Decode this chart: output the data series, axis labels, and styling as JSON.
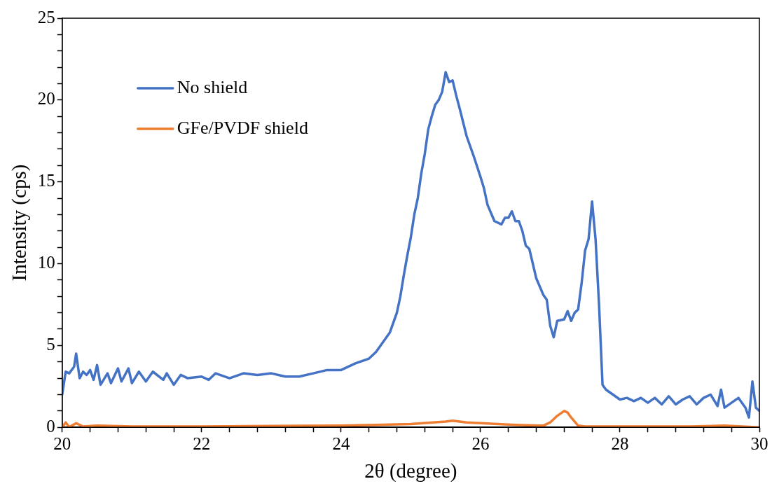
{
  "chart_data": {
    "type": "line",
    "xlabel": "2θ (degree)",
    "ylabel": "Intensity (cps)",
    "xlim": [
      20,
      30
    ],
    "xticks": [
      20,
      {
        "value": 20.4,
        "label": null
      },
      {
        "value": 20.8,
        "label": null
      },
      {
        "value": 21.2,
        "label": null
      },
      {
        "value": 21.6,
        "label": null
      },
      22,
      {
        "value": 22.4,
        "label": null
      },
      {
        "value": 22.8,
        "label": null
      },
      {
        "value": 23.2,
        "label": null
      },
      {
        "value": 23.6,
        "label": null
      },
      24,
      {
        "value": 24.4,
        "label": null
      },
      {
        "value": 24.8,
        "label": null
      },
      {
        "value": 25.2,
        "label": null
      },
      {
        "value": 25.6,
        "label": null
      },
      26,
      {
        "value": 26.4,
        "label": null
      },
      {
        "value": 26.8,
        "label": null
      },
      {
        "value": 27.2,
        "label": null
      },
      {
        "value": 27.6,
        "label": null
      },
      28,
      {
        "value": 28.4,
        "label": null
      },
      {
        "value": 28.8,
        "label": null
      },
      {
        "value": 29.2,
        "label": null
      },
      {
        "value": 29.6,
        "label": null
      },
      30
    ],
    "ylim": [
      0,
      25
    ],
    "yticks": [
      0,
      {
        "value": 1,
        "label": null
      },
      {
        "value": 2,
        "label": null
      },
      {
        "value": 3,
        "label": null
      },
      {
        "value": 4,
        "label": null
      },
      5,
      {
        "value": 6,
        "label": null
      },
      {
        "value": 7,
        "label": null
      },
      {
        "value": 8,
        "label": null
      },
      {
        "value": 9,
        "label": null
      },
      10,
      {
        "value": 11,
        "label": null
      },
      {
        "value": 12,
        "label": null
      },
      {
        "value": 13,
        "label": null
      },
      {
        "value": 14,
        "label": null
      },
      15,
      {
        "value": 16,
        "label": null
      },
      {
        "value": 17,
        "label": null
      },
      {
        "value": 18,
        "label": null
      },
      {
        "value": 19,
        "label": null
      },
      20,
      {
        "value": 21,
        "label": null
      },
      {
        "value": 22,
        "label": null
      },
      {
        "value": 23,
        "label": null
      },
      {
        "value": 24,
        "label": null
      },
      25
    ],
    "grid": false,
    "legend": "top left",
    "marker": "none",
    "line_style": "solid",
    "series": [
      {
        "name": "No shield",
        "color": "#4472c4",
        "x": [
          20.0,
          20.05,
          20.1,
          20.17,
          20.2,
          20.25,
          20.3,
          20.35,
          20.4,
          20.45,
          20.5,
          20.55,
          20.65,
          20.7,
          20.8,
          20.85,
          20.95,
          21.0,
          21.1,
          21.2,
          21.3,
          21.45,
          21.5,
          21.6,
          21.7,
          21.8,
          22.0,
          22.1,
          22.2,
          22.4,
          22.6,
          22.8,
          23.0,
          23.2,
          23.4,
          23.6,
          23.8,
          24.0,
          24.2,
          24.4,
          24.5,
          24.6,
          24.7,
          24.8,
          24.85,
          24.9,
          24.95,
          25.0,
          25.05,
          25.1,
          25.15,
          25.2,
          25.25,
          25.3,
          25.35,
          25.4,
          25.45,
          25.5,
          25.55,
          25.6,
          25.65,
          25.7,
          25.8,
          25.9,
          26.0,
          26.05,
          26.1,
          26.2,
          26.3,
          26.35,
          26.4,
          26.45,
          26.5,
          26.55,
          26.6,
          26.65,
          26.7,
          26.75,
          26.8,
          26.9,
          26.95,
          27.0,
          27.05,
          27.1,
          27.2,
          27.25,
          27.3,
          27.35,
          27.4,
          27.45,
          27.5,
          27.55,
          27.6,
          27.65,
          27.7,
          27.75,
          27.8,
          27.9,
          28.0,
          28.1,
          28.2,
          28.3,
          28.4,
          28.5,
          28.6,
          28.7,
          28.8,
          28.9,
          29.0,
          29.1,
          29.2,
          29.3,
          29.4,
          29.45,
          29.5,
          29.6,
          29.7,
          29.8,
          29.85,
          29.9,
          29.95,
          30.0
        ],
        "values": [
          2.0,
          3.4,
          3.3,
          3.7,
          4.5,
          3.0,
          3.4,
          3.2,
          3.5,
          2.9,
          3.8,
          2.6,
          3.3,
          2.7,
          3.6,
          2.8,
          3.6,
          2.7,
          3.4,
          2.8,
          3.4,
          2.9,
          3.3,
          2.6,
          3.2,
          3.0,
          3.1,
          2.9,
          3.3,
          3.0,
          3.3,
          3.2,
          3.3,
          3.1,
          3.1,
          3.3,
          3.5,
          3.5,
          3.9,
          4.2,
          4.6,
          5.2,
          5.8,
          7.0,
          8.0,
          9.3,
          10.5,
          11.6,
          13.0,
          14.0,
          15.5,
          16.7,
          18.2,
          19.0,
          19.7,
          20.0,
          20.5,
          21.7,
          21.1,
          21.2,
          20.3,
          19.5,
          17.8,
          16.6,
          15.3,
          14.6,
          13.6,
          12.6,
          12.4,
          12.8,
          12.8,
          13.2,
          12.6,
          12.6,
          12.0,
          11.1,
          10.9,
          10.0,
          9.1,
          8.1,
          7.8,
          6.2,
          5.5,
          6.5,
          6.6,
          7.1,
          6.5,
          7.0,
          7.2,
          8.8,
          10.8,
          11.5,
          13.8,
          11.5,
          7.5,
          2.6,
          2.3,
          2.0,
          1.7,
          1.8,
          1.6,
          1.8,
          1.5,
          1.8,
          1.4,
          1.9,
          1.4,
          1.7,
          1.9,
          1.4,
          1.8,
          2.0,
          1.3,
          2.3,
          1.2,
          1.5,
          1.8,
          1.2,
          0.6,
          2.8,
          1.2,
          1.0
        ]
      },
      {
        "name": "GFe/PVDF shield",
        "color": "#ed7d31",
        "x": [
          20.0,
          20.05,
          20.1,
          20.2,
          20.3,
          20.5,
          21.0,
          22.0,
          23.0,
          24.0,
          24.5,
          25.0,
          25.5,
          25.6,
          25.8,
          26.0,
          26.5,
          26.9,
          27.0,
          27.1,
          27.2,
          27.25,
          27.3,
          27.4,
          27.5,
          28.0,
          29.0,
          29.5,
          30.0
        ],
        "values": [
          0.0,
          0.3,
          0.02,
          0.25,
          0.05,
          0.1,
          0.05,
          0.05,
          0.08,
          0.1,
          0.15,
          0.2,
          0.35,
          0.4,
          0.3,
          0.25,
          0.15,
          0.1,
          0.3,
          0.7,
          1.0,
          0.9,
          0.6,
          0.1,
          0.05,
          0.05,
          0.05,
          0.1,
          0.0
        ]
      }
    ]
  }
}
